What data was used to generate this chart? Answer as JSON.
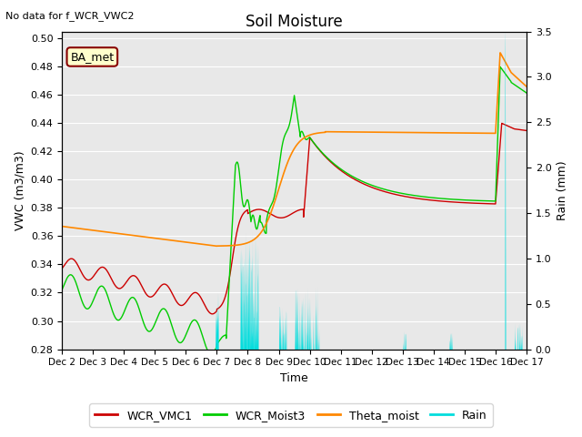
{
  "title": "Soil Moisture",
  "xlabel": "Time",
  "ylabel_left": "VWC (m3/m3)",
  "ylabel_right": "Rain (mm)",
  "annotation_text": "No data for f_WCR_VWC2",
  "box_label": "BA_met",
  "ylim_left": [
    0.28,
    0.505
  ],
  "ylim_right": [
    0.0,
    3.5
  ],
  "yticks_left": [
    0.28,
    0.3,
    0.32,
    0.34,
    0.36,
    0.38,
    0.4,
    0.42,
    0.44,
    0.46,
    0.48,
    0.5
  ],
  "yticks_right": [
    0.0,
    0.5,
    1.0,
    1.5,
    2.0,
    2.5,
    3.0,
    3.5
  ],
  "xtick_labels": [
    "Dec 2",
    "Dec 3",
    "Dec 4",
    "Dec 5",
    "Dec 6",
    "Dec 7",
    "Dec 8",
    "Dec 9",
    "Dec 10",
    "Dec 11",
    "Dec 12",
    "Dec 13",
    "Dec 14",
    "Dec 15",
    "Dec 16",
    "Dec 17"
  ],
  "colors": {
    "WCR_VMC1": "#cc0000",
    "WCR_Moist3": "#00cc00",
    "Theta_moist": "#ff8800",
    "Rain": "#00dddd",
    "background": "#e8e8e8",
    "box_bg": "#ffffcc",
    "box_border": "#880000"
  },
  "legend_entries": [
    "WCR_VMC1",
    "WCR_Moist3",
    "Theta_moist",
    "Rain"
  ]
}
